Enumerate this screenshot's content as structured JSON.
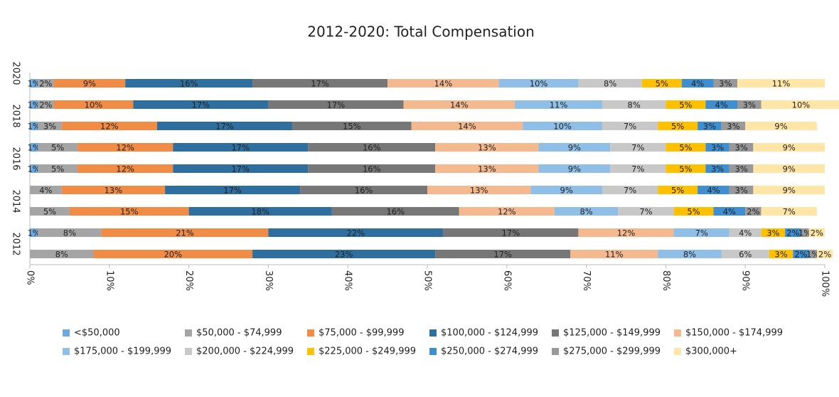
{
  "chart_data": {
    "type": "stacked-bar-100",
    "title": "2012-2020: Total Compensation",
    "categories": [
      "2020",
      null,
      "2018",
      null,
      "2016",
      null,
      "2014",
      null,
      "2012"
    ],
    "xlim": [
      0,
      100
    ],
    "xticks": [
      {
        "value": 0,
        "label": "0%"
      },
      {
        "value": 10,
        "label": "10%"
      },
      {
        "value": 20,
        "label": "20%"
      },
      {
        "value": 30,
        "label": "30%"
      },
      {
        "value": 40,
        "label": "40%"
      },
      {
        "value": 50,
        "label": "50%"
      },
      {
        "value": 60,
        "label": "60%"
      },
      {
        "value": 70,
        "label": "70%"
      },
      {
        "value": 80,
        "label": "80%"
      },
      {
        "value": 90,
        "label": "90%"
      },
      {
        "value": 100,
        "label": "100%"
      }
    ],
    "legend": "bottom",
    "series": [
      {
        "name": "<$50,000",
        "color": "#6fa8dc",
        "values": [
          1,
          1,
          1,
          1,
          1,
          0,
          0,
          1,
          0
        ],
        "value_labels": [
          "1%",
          "1%",
          "1%",
          "1%",
          "1%",
          null,
          null,
          "1%",
          null
        ]
      },
      {
        "name": "$50,000 - $74,999",
        "color": "#a5a5a5",
        "values": [
          2,
          2,
          3,
          5,
          5,
          4,
          5,
          8,
          8
        ],
        "value_labels": [
          "2%",
          "2%",
          "3%",
          "5%",
          "5%",
          "4%",
          "5%",
          "8%",
          "8%"
        ]
      },
      {
        "name": "$75,000 - $99,999",
        "color": "#f08c46",
        "values": [
          9,
          10,
          12,
          12,
          12,
          13,
          15,
          21,
          20
        ],
        "value_labels": [
          "9%",
          "10%",
          "12%",
          "12%",
          "12%",
          "13%",
          "15%",
          "21%",
          "20%"
        ]
      },
      {
        "name": "$100,000 - $124,999",
        "color": "#2f6f9f",
        "values": [
          16,
          17,
          17,
          17,
          17,
          17,
          18,
          22,
          23
        ],
        "value_labels": [
          "16%",
          "17%",
          "17%",
          "17%",
          "17%",
          "17%",
          "18%",
          "22%",
          "23%"
        ]
      },
      {
        "name": "$125,000 - $149,999",
        "color": "#777777",
        "values": [
          17,
          17,
          15,
          16,
          16,
          16,
          16,
          17,
          17
        ],
        "value_labels": [
          "17%",
          "17%",
          "15%",
          "16%",
          "16%",
          "16%",
          "16%",
          "17%",
          "17%"
        ]
      },
      {
        "name": "$150,000 - $174,999",
        "color": "#f4b98f",
        "values": [
          14,
          14,
          14,
          13,
          13,
          13,
          12,
          12,
          11
        ],
        "value_labels": [
          "14%",
          "14%",
          "14%",
          "13%",
          "13%",
          "13%",
          "12%",
          "12%",
          "11%"
        ]
      },
      {
        "name": "$175,000 - $199,999",
        "color": "#8fbfe6",
        "values": [
          10,
          11,
          10,
          9,
          9,
          9,
          8,
          7,
          8
        ],
        "value_labels": [
          "10%",
          "11%",
          "10%",
          "9%",
          "9%",
          "9%",
          "8%",
          "7%",
          "8%"
        ]
      },
      {
        "name": "$200,000 - $224,999",
        "color": "#c8c8c8",
        "values": [
          8,
          8,
          7,
          7,
          7,
          7,
          7,
          4,
          6
        ],
        "value_labels": [
          "8%",
          "8%",
          "7%",
          "7%",
          "7%",
          "7%",
          "7%",
          "4%",
          "6%"
        ]
      },
      {
        "name": "$225,000 - $249,999",
        "color": "#ffc000",
        "values": [
          5,
          5,
          5,
          5,
          5,
          5,
          5,
          3,
          3
        ],
        "value_labels": [
          "5%",
          "5%",
          "5%",
          "5%",
          "5%",
          "5%",
          "5%",
          "3%",
          "3%"
        ]
      },
      {
        "name": "$250,000 - $274,999",
        "color": "#3e8ed0",
        "values": [
          4,
          4,
          3,
          3,
          3,
          4,
          4,
          2,
          2
        ],
        "value_labels": [
          "4%",
          "4%",
          "3%",
          "3%",
          "3%",
          "4%",
          "4%",
          "2%",
          "2%"
        ]
      },
      {
        "name": "$275,000 - $299,999",
        "color": "#999999",
        "values": [
          3,
          3,
          3,
          3,
          3,
          3,
          2,
          1,
          1
        ],
        "value_labels": [
          "3%",
          "3%",
          "3%",
          "3%",
          "3%",
          "3%",
          "2%",
          "1%",
          "1%"
        ]
      },
      {
        "name": "$300,000+",
        "color": "#ffe6a6",
        "values": [
          11,
          10,
          9,
          9,
          9,
          9,
          7,
          2,
          2
        ],
        "value_labels": [
          "11%",
          "10%",
          "9%",
          "9%",
          "9%",
          "9%",
          "7%",
          "2%",
          "2%"
        ]
      }
    ]
  }
}
